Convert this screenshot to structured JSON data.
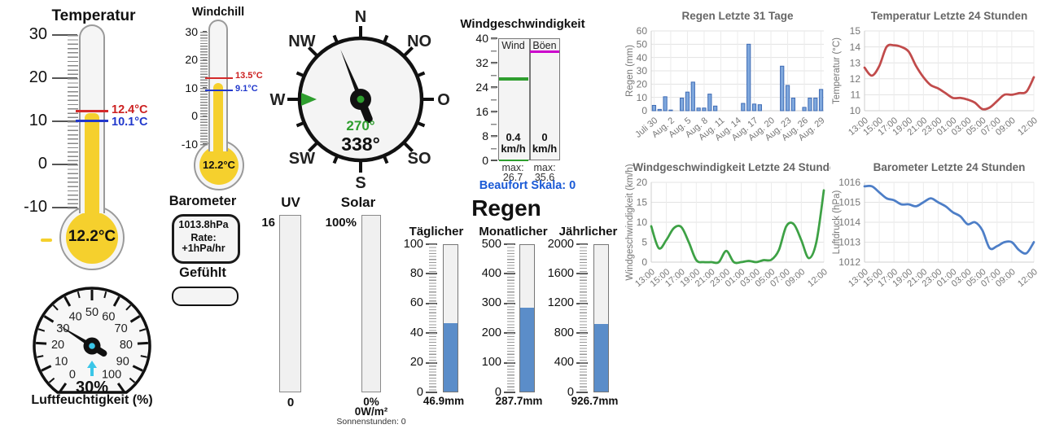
{
  "temperature_thermometer": {
    "title": "Temperatur",
    "scale_labels": [
      30,
      20,
      10,
      0,
      -10
    ],
    "value_label": "12.2°C",
    "fill_value": 12.2,
    "high": {
      "label": "12.4°C",
      "value": 12.4,
      "color": "#cc2020"
    },
    "low": {
      "label": "10.1°C",
      "value": 10.1,
      "color": "#2038cc"
    },
    "fill_color": "#f5d02d"
  },
  "windchill_thermometer": {
    "title": "Windchill",
    "scale_labels": [
      30,
      20,
      10,
      0,
      -10
    ],
    "value_label": "12.2°C",
    "fill_value": 12.2,
    "high": {
      "label": "13.5°C",
      "value": 13.5,
      "color": "#cc2020"
    },
    "low": {
      "label": "9.1°C",
      "value": 9.1,
      "color": "#2038cc"
    },
    "fill_color": "#f5d02d"
  },
  "compass": {
    "labels": [
      "N",
      "NO",
      "O",
      "SO",
      "S",
      "SW",
      "W",
      "NW"
    ],
    "direction_deg": 338,
    "direction_label": "338°",
    "avg_deg": 270,
    "avg_label": "270°",
    "avg_color": "#2e9e2e"
  },
  "wind_gauge": {
    "title": "Windgeschwindigkeit",
    "scale_labels": [
      40,
      32,
      24,
      16,
      8,
      0
    ],
    "scale_max": 40,
    "columns": [
      {
        "header": "Wind",
        "value_label": "0.4",
        "unit": "km/h",
        "current": 0.4,
        "max_label": "max:",
        "max_value": "26.7",
        "max": 26.7,
        "color": "#2e9e2e"
      },
      {
        "header": "Böen",
        "value_label": "0",
        "unit": "km/h",
        "current": 0,
        "max_label": "max:",
        "max_value": "35.6",
        "max": 35.6,
        "color": "#cc00cc"
      }
    ],
    "beaufort": "Beaufort Skala: 0",
    "beaufort_color": "#1a5ad6"
  },
  "barometer": {
    "title": "Barometer",
    "pressure": "1013.8hPa",
    "rate_label": "Rate:",
    "rate": "+1hPa/hr"
  },
  "feels_like": {
    "title": "Gefühlt",
    "value": ""
  },
  "humidity": {
    "title": "Luftfeuchtigkeit (%)",
    "value": 30,
    "value_label": "30%",
    "ticks": [
      0,
      10,
      20,
      30,
      40,
      50,
      60,
      70,
      80,
      90,
      100
    ],
    "trend_icon": "up-arrow-icon",
    "arrow_color": "#3bc6e8"
  },
  "uv_gauge": {
    "title": "UV",
    "max_label": "16",
    "min_label": "0",
    "value": 0,
    "max": 16
  },
  "solar_gauge": {
    "title": "Solar",
    "max_label": "100%",
    "value_label": "0%",
    "watts": "0W/m²",
    "sun_hours": "Sonnenstunden: 0",
    "value": 0,
    "max": 100
  },
  "rain": {
    "title": "Regen",
    "bar_color": "#5b8dc9",
    "gauges": [
      {
        "title": "Täglicher",
        "scale_labels": [
          100,
          80,
          60,
          40,
          20,
          0
        ],
        "max": 100,
        "value": 46.9,
        "value_label": "46.9mm"
      },
      {
        "title": "Monatlicher",
        "scale_labels": [
          500,
          400,
          300,
          200,
          100,
          0
        ],
        "max": 500,
        "value": 287.7,
        "value_label": "287.7mm"
      },
      {
        "title": "Jährlicher",
        "scale_labels": [
          2000,
          1600,
          1200,
          800,
          400,
          0
        ],
        "max": 2000,
        "value": 926.7,
        "value_label": "926.7mm"
      }
    ]
  },
  "chart_data": [
    {
      "type": "bar",
      "title": "Regen Letzte 31 Tage",
      "ylabel": "Regen (mm)",
      "ylim": [
        0,
        60
      ],
      "yticks": [
        0,
        10,
        20,
        30,
        40,
        50,
        60
      ],
      "categories": [
        "Juli 30",
        "Juli 31",
        "Aug. 1",
        "Aug. 2",
        "Aug. 3",
        "Aug. 4",
        "Aug. 5",
        "Aug. 6",
        "Aug. 7",
        "Aug. 8",
        "Aug. 9",
        "Aug. 10",
        "Aug. 11",
        "Aug. 12",
        "Aug. 13",
        "Aug. 14",
        "Aug. 15",
        "Aug. 16",
        "Aug. 17",
        "Aug. 18",
        "Aug. 19",
        "Aug. 20",
        "Aug. 21",
        "Aug. 22",
        "Aug. 23",
        "Aug. 24",
        "Aug. 25",
        "Aug. 26",
        "Aug. 27",
        "Aug. 28",
        "Aug. 29"
      ],
      "values": [
        4,
        1,
        10.5,
        0.5,
        0,
        9.5,
        14,
        21.5,
        2,
        2,
        12.5,
        3.5,
        0,
        0,
        0,
        0,
        5.5,
        50,
        5,
        4.5,
        0,
        0,
        0,
        33.5,
        19,
        9.5,
        0,
        2.5,
        9.5,
        9.5,
        16
      ],
      "x_tick_indices": [
        0,
        3,
        6,
        9,
        12,
        15,
        18,
        21,
        24,
        27,
        30
      ],
      "x_tick_labels": [
        "Juli 30",
        "Aug. 2",
        "Aug. 5",
        "Aug. 8",
        "Aug. 11",
        "Aug. 14",
        "Aug. 17",
        "Aug. 20",
        "Aug. 23",
        "Aug. 26",
        "Aug. 29"
      ],
      "color": "#7fa8dd",
      "border": "#3f6cb5",
      "grid": true,
      "legend": "none"
    },
    {
      "type": "line",
      "title": "Temperatur Letzte 24 Stunden",
      "ylabel": "Temperatur (°C)",
      "ylim": [
        10,
        15
      ],
      "yticks": [
        10,
        11,
        12,
        13,
        14,
        15
      ],
      "categories": [
        "13:00",
        "14:00",
        "15:00",
        "16:00",
        "17:00",
        "18:00",
        "19:00",
        "20:00",
        "21:00",
        "22:00",
        "23:00",
        "00:00",
        "01:00",
        "02:00",
        "03:00",
        "04:00",
        "05:00",
        "06:00",
        "07:00",
        "08:00",
        "09:00",
        "10:00",
        "11:00",
        "12:00"
      ],
      "values": [
        12.7,
        12.2,
        12.8,
        14.0,
        14.1,
        14.0,
        13.7,
        12.8,
        12.1,
        11.6,
        11.4,
        11.1,
        10.8,
        10.8,
        10.7,
        10.5,
        10.1,
        10.2,
        10.6,
        11.0,
        11.0,
        11.1,
        11.2,
        12.1
      ],
      "x_tick_indices": [
        0,
        2,
        4,
        6,
        8,
        10,
        12,
        14,
        16,
        18,
        20,
        23
      ],
      "x_tick_labels": [
        "13:00",
        "15:00",
        "17:00",
        "19:00",
        "21:00",
        "23:00",
        "01:00",
        "03:00",
        "05:00",
        "07:00",
        "09:00",
        "12:00"
      ],
      "color": "#c14b4b",
      "grid": true,
      "legend": "none"
    },
    {
      "type": "line",
      "title": "Windgeschwindigkeit Letzte 24 Stunden",
      "ylabel": "Windgeschwindigkeit (km/h)",
      "ylim": [
        0,
        20
      ],
      "yticks": [
        0,
        5,
        10,
        15,
        20
      ],
      "categories": [
        "13:00",
        "14:00",
        "15:00",
        "16:00",
        "17:00",
        "18:00",
        "19:00",
        "20:00",
        "21:00",
        "22:00",
        "23:00",
        "00:00",
        "01:00",
        "02:00",
        "03:00",
        "04:00",
        "05:00",
        "06:00",
        "07:00",
        "08:00",
        "09:00",
        "10:00",
        "11:00",
        "12:00"
      ],
      "values": [
        9,
        3.5,
        5.5,
        8.5,
        8.8,
        5,
        0.5,
        0,
        0,
        0,
        2.8,
        0,
        0,
        0.3,
        0,
        0.5,
        0.6,
        3,
        9,
        9.5,
        5.5,
        1,
        5,
        18
      ],
      "x_tick_indices": [
        0,
        2,
        4,
        6,
        8,
        10,
        12,
        14,
        16,
        18,
        20,
        23
      ],
      "x_tick_labels": [
        "13:00",
        "15:00",
        "17:00",
        "19:00",
        "21:00",
        "23:00",
        "01:00",
        "03:00",
        "05:00",
        "07:00",
        "09:00",
        "12:00"
      ],
      "color": "#3da145",
      "grid": true,
      "legend": "none"
    },
    {
      "type": "line",
      "title": "Barometer Letzte 24 Stunden",
      "ylabel": "Luftdruck (hPa)",
      "ylim": [
        1012,
        1016
      ],
      "yticks": [
        1012,
        1013,
        1014,
        1015,
        1016
      ],
      "categories": [
        "13:00",
        "14:00",
        "15:00",
        "16:00",
        "17:00",
        "18:00",
        "19:00",
        "20:00",
        "21:00",
        "22:00",
        "23:00",
        "00:00",
        "01:00",
        "02:00",
        "03:00",
        "04:00",
        "05:00",
        "06:00",
        "07:00",
        "08:00",
        "09:00",
        "10:00",
        "11:00",
        "12:00"
      ],
      "values": [
        1015.8,
        1015.8,
        1015.5,
        1015.2,
        1015.1,
        1014.9,
        1014.9,
        1014.8,
        1015.0,
        1015.2,
        1015.0,
        1014.8,
        1014.5,
        1014.3,
        1013.9,
        1014.0,
        1013.6,
        1012.7,
        1012.8,
        1013.0,
        1013.0,
        1012.6,
        1012.45,
        1013.0
      ],
      "x_tick_indices": [
        0,
        2,
        4,
        6,
        8,
        10,
        12,
        14,
        16,
        18,
        20,
        23
      ],
      "x_tick_labels": [
        "13:00",
        "15:00",
        "17:00",
        "19:00",
        "21:00",
        "23:00",
        "01:00",
        "03:00",
        "05:00",
        "07:00",
        "09:00",
        "12:00"
      ],
      "color": "#4d7ec7",
      "grid": true,
      "legend": "none"
    }
  ]
}
